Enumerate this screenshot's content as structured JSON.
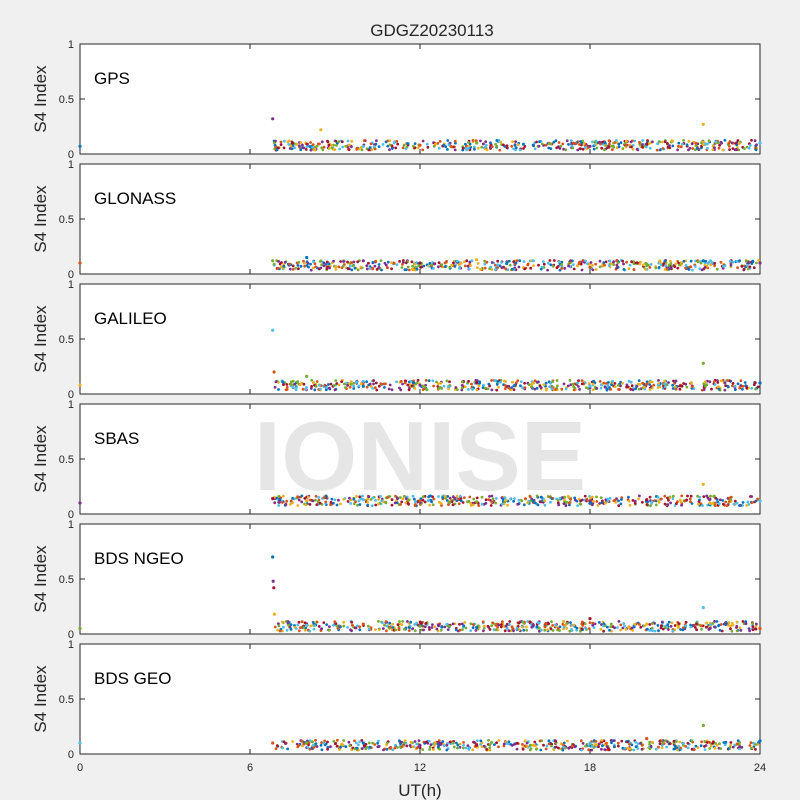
{
  "chart_data": {
    "type": "scatter",
    "title": "GDGZ20230113",
    "xlabel": "UT(h)",
    "ylabel": "S4 Index",
    "xlim": [
      0,
      24
    ],
    "ylim": [
      0,
      1
    ],
    "xticks": [
      0,
      6,
      12,
      18,
      24
    ],
    "yticks": [
      0,
      0.5,
      1
    ],
    "xtick_labels": [
      "0",
      "6",
      "12",
      "18",
      "24"
    ],
    "ytick_labels": [
      "0",
      "0.5",
      "1"
    ],
    "grid": false,
    "series_colors": [
      "#0072BD",
      "#D95319",
      "#EDB120",
      "#7E2F8E",
      "#77AC30",
      "#4DBEEE",
      "#A2142F"
    ],
    "panels": [
      {
        "label": "GPS",
        "baseline": 0.08,
        "series": [
          {
            "x": [
              0,
              6.8,
              7.5,
              8.5,
              10,
              12,
              14,
              16,
              18,
              20,
              22,
              24
            ],
            "y": [
              0.07,
              0.32,
              0.1,
              0.22,
              0.07,
              0.08,
              0.1,
              0.08,
              0.07,
              0.09,
              0.27,
              0.1
            ]
          }
        ]
      },
      {
        "label": "GLONASS",
        "baseline": 0.08,
        "series": [
          {
            "x": [
              0,
              6.8,
              8,
              10,
              12,
              14,
              16,
              18,
              20,
              22,
              24
            ],
            "y": [
              0.1,
              0.12,
              0.15,
              0.12,
              0.1,
              0.13,
              0.12,
              0.06,
              0.09,
              0.12,
              0.1
            ]
          }
        ]
      },
      {
        "label": "GALILEO",
        "baseline": 0.08,
        "series": [
          {
            "x": [
              0,
              6.8,
              6.85,
              8,
              10,
              12,
              14,
              16,
              18,
              20,
              22,
              24
            ],
            "y": [
              0.08,
              0.58,
              0.2,
              0.16,
              0.07,
              0.08,
              0.1,
              0.1,
              0.07,
              0.09,
              0.28,
              0.1
            ]
          }
        ]
      },
      {
        "label": "SBAS",
        "baseline": 0.12,
        "series": [
          {
            "x": [
              0,
              6.8,
              8,
              10,
              12,
              14,
              16,
              18,
              20,
              22,
              24
            ],
            "y": [
              0.1,
              0.14,
              0.12,
              0.13,
              0.12,
              0.11,
              0.12,
              0.12,
              0.13,
              0.27,
              0.12
            ]
          }
        ]
      },
      {
        "label": "BDS NGEO",
        "baseline": 0.07,
        "series": [
          {
            "x": [
              0,
              6.8,
              6.82,
              6.84,
              6.86,
              8,
              10,
              12,
              14,
              16,
              18,
              20,
              22,
              24
            ],
            "y": [
              0.05,
              0.7,
              0.48,
              0.42,
              0.18,
              0.08,
              0.09,
              0.07,
              0.06,
              0.08,
              0.14,
              0.09,
              0.24,
              0.05
            ]
          }
        ]
      },
      {
        "label": "BDS GEO",
        "baseline": 0.08,
        "series": [
          {
            "x": [
              0,
              6.8,
              8,
              10,
              12,
              14,
              16,
              18,
              20,
              22,
              24
            ],
            "y": [
              0.1,
              0.1,
              0.1,
              0.1,
              0.08,
              0.08,
              0.08,
              0.1,
              0.14,
              0.26,
              0.12
            ]
          }
        ]
      }
    ]
  },
  "watermark": "IONISE"
}
